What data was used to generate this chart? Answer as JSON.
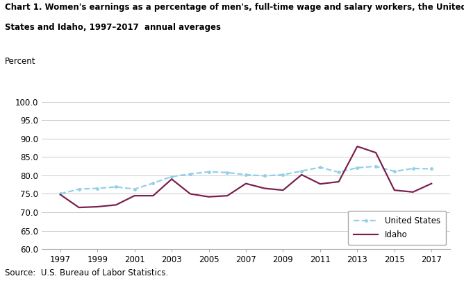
{
  "title_line1": "Chart 1. Women's earnings as a percentage of men's, full-time wage and salary workers, the United",
  "title_line2": "States and Idaho, 1997–2017  annual averages",
  "ylabel": "Percent",
  "source": "Source:  U.S. Bureau of Labor Statistics.",
  "years": [
    1997,
    1998,
    1999,
    2000,
    2001,
    2002,
    2003,
    2004,
    2005,
    2006,
    2007,
    2008,
    2009,
    2010,
    2011,
    2012,
    2013,
    2014,
    2015,
    2016,
    2017
  ],
  "us_data": [
    75.0,
    76.3,
    76.5,
    76.9,
    76.3,
    77.9,
    79.7,
    80.4,
    81.0,
    80.8,
    80.2,
    79.9,
    80.2,
    81.2,
    82.2,
    80.9,
    82.1,
    82.5,
    81.1,
    81.9,
    81.8
  ],
  "idaho_data": [
    74.8,
    71.3,
    71.5,
    72.0,
    74.5,
    74.5,
    79.0,
    75.0,
    74.2,
    74.5,
    77.8,
    76.5,
    76.0,
    80.2,
    77.7,
    78.3,
    87.9,
    86.2,
    76.0,
    75.5,
    77.8
  ],
  "us_color": "#92d0e8",
  "idaho_color": "#7b1f4e",
  "ylim": [
    60.0,
    100.0
  ],
  "yticks": [
    60.0,
    65.0,
    70.0,
    75.0,
    80.0,
    85.0,
    90.0,
    95.0,
    100.0
  ],
  "xticks": [
    1997,
    1999,
    2001,
    2003,
    2005,
    2007,
    2009,
    2011,
    2013,
    2015,
    2017
  ],
  "bg_color": "#ffffff",
  "plot_bg_color": "#ffffff",
  "grid_color": "#c8c8c8",
  "legend_loc": "lower right"
}
